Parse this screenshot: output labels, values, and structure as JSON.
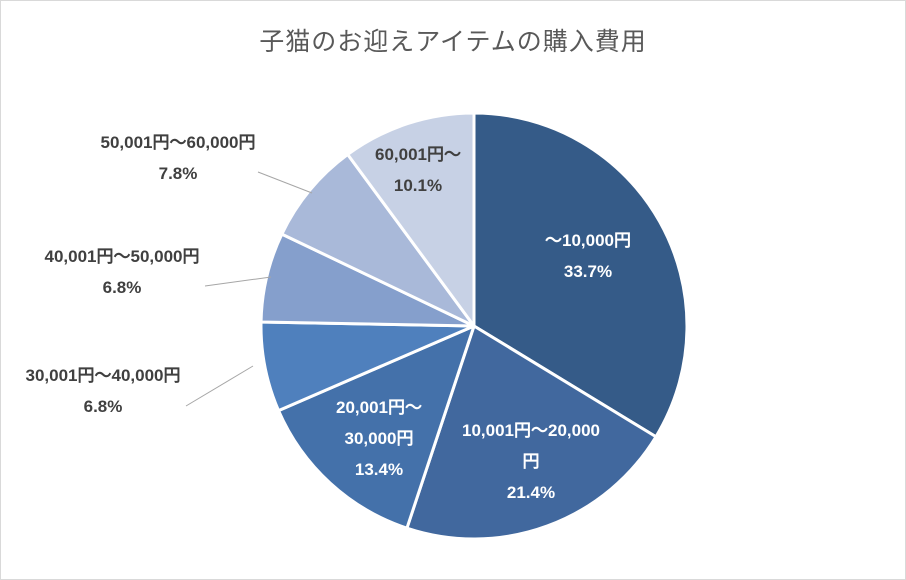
{
  "chart_data": {
    "type": "pie",
    "title": "子猫のお迎えアイテムの購入費用",
    "slices": [
      {
        "label": "～10,000円",
        "label_lines": [
          "～10,000円"
        ],
        "value": 33.7,
        "display": "33.7%",
        "color": "#355b88",
        "label_color": "#ffffff"
      },
      {
        "label": "10,001円～20,000円",
        "label_lines": [
          "10,001円～20,000",
          "円"
        ],
        "value": 21.4,
        "display": "21.4%",
        "color": "#41689e",
        "label_color": "#ffffff"
      },
      {
        "label": "20,001円～30,000円",
        "label_lines": [
          "20,001円～",
          "30,000円"
        ],
        "value": 13.4,
        "display": "13.4%",
        "color": "#4471aa",
        "label_color": "#ffffff"
      },
      {
        "label": "30,001円～40,000円",
        "label_lines": [
          "30,001円～40,000円"
        ],
        "value": 6.8,
        "display": "6.8%",
        "color": "#4f80bd",
        "label_color": "#404040"
      },
      {
        "label": "40,001円～50,000円",
        "label_lines": [
          "40,001円～50,000円"
        ],
        "value": 6.8,
        "display": "6.8%",
        "color": "#859fcc",
        "label_color": "#404040"
      },
      {
        "label": "50,001円～60,000円",
        "label_lines": [
          "50,001円～60,000円"
        ],
        "value": 7.8,
        "display": "7.8%",
        "color": "#a9b9d9",
        "label_color": "#404040"
      },
      {
        "label": "60,001円～",
        "label_lines": [
          "60,001円～"
        ],
        "value": 10.1,
        "display": "10.1%",
        "color": "#c7d1e5",
        "label_color": "#404040"
      }
    ]
  }
}
